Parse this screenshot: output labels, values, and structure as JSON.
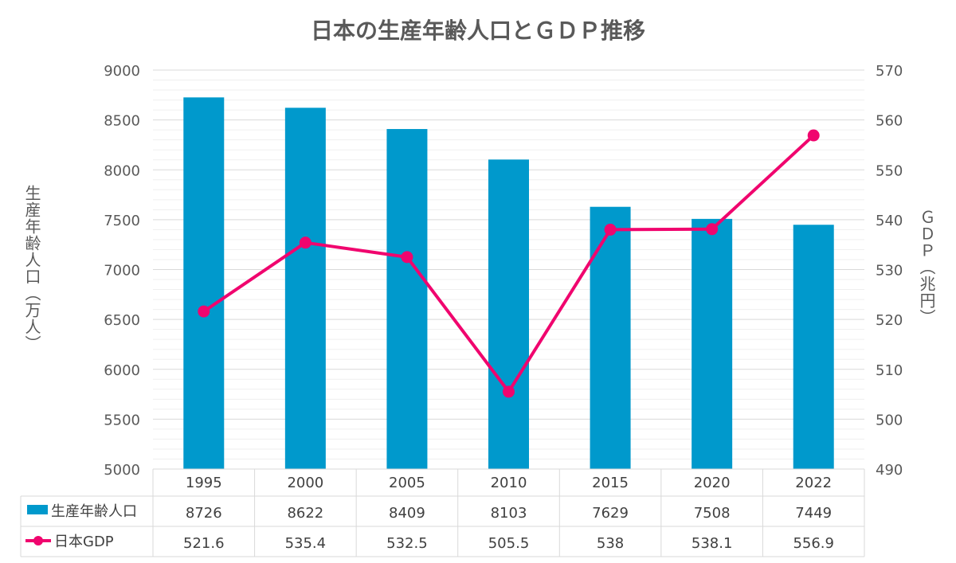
{
  "chart_data": {
    "type": "bar",
    "title": "日本の生産年齢人口とＧＤＰ推移",
    "categories": [
      "1995",
      "2000",
      "2005",
      "2010",
      "2015",
      "2020",
      "2022"
    ],
    "series": [
      {
        "name": "生産年齢人口",
        "type": "bar",
        "axis": "left",
        "color": "#0099CC",
        "values": [
          8726,
          8622,
          8409,
          8103,
          7629,
          7508,
          7449
        ],
        "labels": [
          "8726",
          "8622",
          "8409",
          "8103",
          "7629",
          "7508",
          "7449"
        ]
      },
      {
        "name": "日本GDP",
        "type": "line",
        "axis": "right",
        "color": "#F0056E",
        "values": [
          521.6,
          535.4,
          532.5,
          505.5,
          538,
          538.1,
          556.9
        ],
        "labels": [
          "521.6",
          "535.4",
          "532.5",
          "505.5",
          "538",
          "538.1",
          "556.9"
        ]
      }
    ],
    "y_left": {
      "label": "生産年齢人口（万人）",
      "min": 5000,
      "max": 9000,
      "ticks": [
        "5000",
        "5500",
        "6000",
        "6500",
        "7000",
        "7500",
        "8000",
        "8500",
        "9000"
      ]
    },
    "y_right": {
      "label": "ＧＤＰ（兆円）",
      "min": 490,
      "max": 570,
      "ticks": [
        "490",
        "500",
        "510",
        "520",
        "530",
        "540",
        "550",
        "560",
        "570"
      ]
    },
    "grid": true,
    "legend": "data-table"
  }
}
